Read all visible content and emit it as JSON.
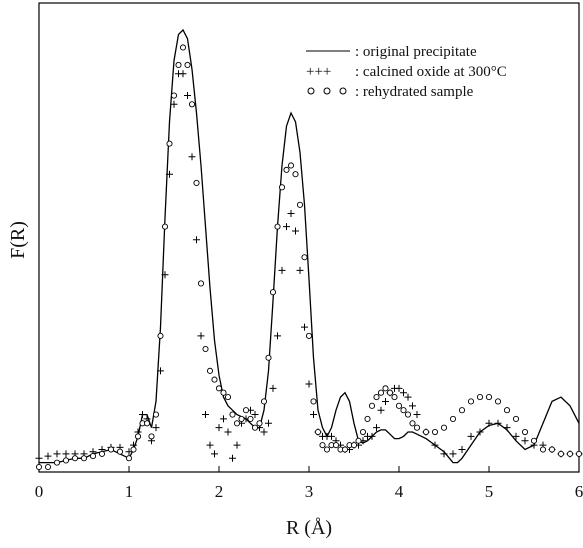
{
  "chart_data": {
    "type": "line",
    "title": "",
    "xlabel": "R (Å)",
    "ylabel": "F(R)",
    "xlim": [
      0,
      6
    ],
    "ylim": [
      0,
      1.0
    ],
    "y_ticks_shown": false,
    "x_ticks": [
      "0",
      "1",
      "2",
      "3",
      "4",
      "5",
      "6"
    ],
    "grid": false,
    "legend_position": "top-right",
    "series": [
      {
        "name": "original precipitate",
        "legend_symbol": "——",
        "marker": "line",
        "color": "#000000",
        "x": [
          0.0,
          0.1,
          0.2,
          0.3,
          0.4,
          0.5,
          0.6,
          0.7,
          0.8,
          0.9,
          1.0,
          1.05,
          1.1,
          1.15,
          1.2,
          1.25,
          1.3,
          1.35,
          1.4,
          1.45,
          1.5,
          1.55,
          1.6,
          1.65,
          1.7,
          1.75,
          1.8,
          1.85,
          1.9,
          1.95,
          2.0,
          2.05,
          2.1,
          2.15,
          2.2,
          2.25,
          2.3,
          2.35,
          2.4,
          2.45,
          2.5,
          2.55,
          2.6,
          2.65,
          2.7,
          2.75,
          2.8,
          2.85,
          2.9,
          2.95,
          3.0,
          3.05,
          3.1,
          3.15,
          3.2,
          3.25,
          3.3,
          3.35,
          3.4,
          3.45,
          3.5,
          3.55,
          3.6,
          3.65,
          3.7,
          3.75,
          3.8,
          3.85,
          3.9,
          3.95,
          4.0,
          4.05,
          4.1,
          4.15,
          4.2,
          4.3,
          4.4,
          4.5,
          4.6,
          4.65,
          4.7,
          4.8,
          4.9,
          5.0,
          5.1,
          5.2,
          5.3,
          5.4,
          5.5,
          5.6,
          5.7,
          5.8,
          5.9,
          6.0
        ],
        "y": [
          0.01,
          0.01,
          0.01,
          0.015,
          0.02,
          0.02,
          0.03,
          0.035,
          0.04,
          0.03,
          0.02,
          0.04,
          0.07,
          0.12,
          0.12,
          0.09,
          0.15,
          0.32,
          0.57,
          0.79,
          0.93,
          0.99,
          1.0,
          0.98,
          0.91,
          0.81,
          0.69,
          0.55,
          0.41,
          0.29,
          0.21,
          0.16,
          0.14,
          0.13,
          0.12,
          0.115,
          0.11,
          0.1,
          0.09,
          0.09,
          0.13,
          0.22,
          0.38,
          0.55,
          0.69,
          0.78,
          0.81,
          0.79,
          0.72,
          0.6,
          0.43,
          0.25,
          0.13,
          0.09,
          0.07,
          0.09,
          0.13,
          0.16,
          0.17,
          0.15,
          0.1,
          0.06,
          0.055,
          0.06,
          0.07,
          0.08,
          0.085,
          0.085,
          0.075,
          0.065,
          0.065,
          0.07,
          0.08,
          0.08,
          0.075,
          0.065,
          0.05,
          0.035,
          0.01,
          0.01,
          0.02,
          0.05,
          0.08,
          0.095,
          0.1,
          0.085,
          0.06,
          0.04,
          0.05,
          0.1,
          0.15,
          0.16,
          0.14,
          0.1
        ]
      },
      {
        "name": "calcined oxide at 300°C",
        "legend_symbol": "+++",
        "marker": "+",
        "color": "#000000",
        "x": [
          0.0,
          0.1,
          0.2,
          0.3,
          0.4,
          0.5,
          0.6,
          0.7,
          0.8,
          0.9,
          1.0,
          1.05,
          1.1,
          1.15,
          1.2,
          1.25,
          1.3,
          1.35,
          1.4,
          1.45,
          1.5,
          1.55,
          1.6,
          1.65,
          1.7,
          1.75,
          1.8,
          1.85,
          1.9,
          1.95,
          2.0,
          2.05,
          2.1,
          2.15,
          2.2,
          2.25,
          2.3,
          2.35,
          2.4,
          2.45,
          2.5,
          2.55,
          2.6,
          2.65,
          2.7,
          2.75,
          2.8,
          2.85,
          2.9,
          2.95,
          3.0,
          3.05,
          3.1,
          3.15,
          3.2,
          3.25,
          3.3,
          3.35,
          3.4,
          3.45,
          3.5,
          3.55,
          3.6,
          3.65,
          3.7,
          3.75,
          3.8,
          3.85,
          3.9,
          3.95,
          4.0,
          4.05,
          4.1,
          4.15,
          4.2,
          4.3,
          4.4,
          4.5,
          4.6,
          4.7,
          4.8,
          4.9,
          5.0,
          5.1,
          5.2,
          5.3,
          5.4,
          5.5,
          5.6,
          5.7,
          5.8,
          5.9,
          6.0
        ],
        "y": [
          0.02,
          0.025,
          0.03,
          0.03,
          0.03,
          0.03,
          0.035,
          0.04,
          0.045,
          0.045,
          0.035,
          0.05,
          0.08,
          0.12,
          0.11,
          0.06,
          0.09,
          0.22,
          0.44,
          0.67,
          0.83,
          0.9,
          0.9,
          0.85,
          0.71,
          0.52,
          0.3,
          0.12,
          0.05,
          0.03,
          0.09,
          0.11,
          0.08,
          0.02,
          0.05,
          0.1,
          0.11,
          0.13,
          0.12,
          0.09,
          0.08,
          0.1,
          0.18,
          0.3,
          0.45,
          0.55,
          0.58,
          0.54,
          0.45,
          0.32,
          0.19,
          0.12,
          0.08,
          0.07,
          0.07,
          0.07,
          0.06,
          0.05,
          0.04,
          0.04,
          0.05,
          0.05,
          0.06,
          0.07,
          0.07,
          0.09,
          0.13,
          0.15,
          0.17,
          0.18,
          0.18,
          0.17,
          0.16,
          0.14,
          0.12,
          0.08,
          0.05,
          0.03,
          0.03,
          0.04,
          0.07,
          0.08,
          0.1,
          0.1,
          0.09,
          0.07,
          0.06,
          0.05,
          0.05,
          0.04,
          0.03,
          0.03,
          0.03
        ]
      },
      {
        "name": "rehydrated sample",
        "legend_symbol": "o o o",
        "marker": "o",
        "color": "#000000",
        "x": [
          0.0,
          0.1,
          0.2,
          0.3,
          0.4,
          0.5,
          0.6,
          0.7,
          0.8,
          0.9,
          1.0,
          1.05,
          1.1,
          1.15,
          1.2,
          1.25,
          1.3,
          1.35,
          1.4,
          1.45,
          1.5,
          1.55,
          1.6,
          1.65,
          1.7,
          1.75,
          1.8,
          1.85,
          1.9,
          1.95,
          2.0,
          2.05,
          2.1,
          2.15,
          2.2,
          2.25,
          2.3,
          2.35,
          2.4,
          2.45,
          2.5,
          2.55,
          2.6,
          2.65,
          2.7,
          2.75,
          2.8,
          2.85,
          2.9,
          2.95,
          3.0,
          3.05,
          3.1,
          3.15,
          3.2,
          3.25,
          3.3,
          3.35,
          3.4,
          3.45,
          3.5,
          3.55,
          3.6,
          3.65,
          3.7,
          3.75,
          3.8,
          3.85,
          3.9,
          3.95,
          4.0,
          4.05,
          4.1,
          4.15,
          4.2,
          4.3,
          4.4,
          4.5,
          4.6,
          4.7,
          4.8,
          4.9,
          5.0,
          5.1,
          5.2,
          5.3,
          5.4,
          5.5,
          5.6,
          5.7,
          5.8,
          5.9,
          6.0
        ],
        "y": [
          0.0,
          0.0,
          0.01,
          0.015,
          0.02,
          0.02,
          0.025,
          0.03,
          0.04,
          0.035,
          0.02,
          0.04,
          0.07,
          0.1,
          0.1,
          0.07,
          0.12,
          0.3,
          0.55,
          0.74,
          0.85,
          0.92,
          0.96,
          0.92,
          0.83,
          0.65,
          0.42,
          0.27,
          0.22,
          0.2,
          0.18,
          0.17,
          0.16,
          0.12,
          0.1,
          0.11,
          0.13,
          0.11,
          0.09,
          0.1,
          0.15,
          0.25,
          0.4,
          0.55,
          0.64,
          0.68,
          0.69,
          0.67,
          0.6,
          0.48,
          0.3,
          0.15,
          0.08,
          0.05,
          0.04,
          0.05,
          0.05,
          0.04,
          0.04,
          0.05,
          0.05,
          0.06,
          0.08,
          0.11,
          0.14,
          0.16,
          0.17,
          0.18,
          0.17,
          0.16,
          0.14,
          0.13,
          0.12,
          0.1,
          0.09,
          0.08,
          0.08,
          0.09,
          0.11,
          0.13,
          0.15,
          0.16,
          0.16,
          0.15,
          0.13,
          0.11,
          0.08,
          0.06,
          0.04,
          0.04,
          0.03,
          0.03,
          0.03
        ]
      }
    ]
  },
  "legend": [
    {
      "symbol": "——",
      "text": ": original precipitate"
    },
    {
      "symbol": "+++",
      "text": ": calcined oxide at 300°C"
    },
    {
      "symbol": "o o o",
      "text": ": rehydrated sample"
    }
  ]
}
